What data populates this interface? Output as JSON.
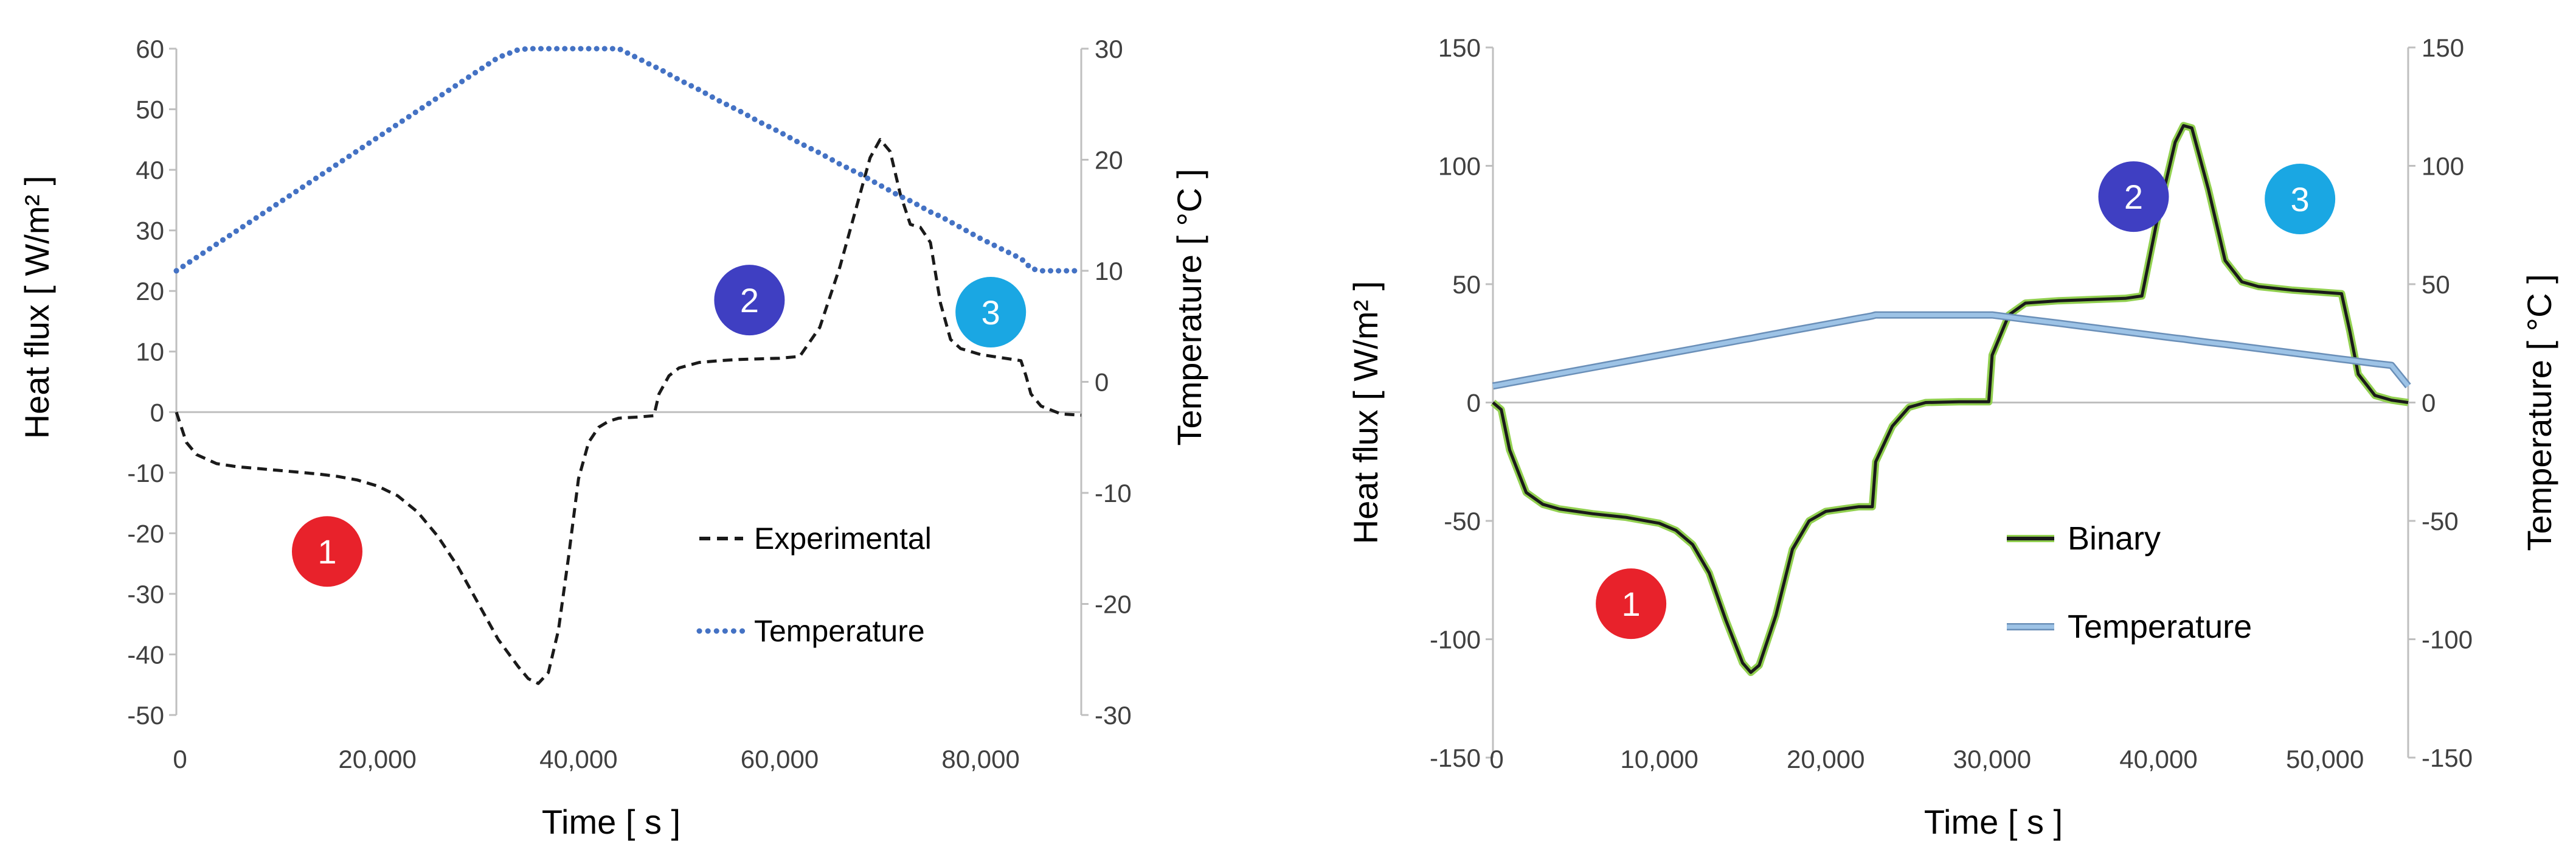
{
  "chart_data": [
    {
      "type": "line",
      "x": [
        0,
        1000,
        2000,
        4000,
        6000,
        8000,
        10000,
        12000,
        14000,
        16000,
        18000,
        20000,
        22000,
        24000,
        26000,
        28000,
        30000,
        32000,
        34000,
        35000,
        36000,
        37000,
        38000,
        39000,
        40000,
        41000,
        42000,
        43000,
        44000,
        46000,
        47500,
        48000,
        49000,
        50000,
        52000,
        54000,
        56000,
        58000,
        60000,
        62000,
        64000,
        66000,
        68000,
        69000,
        70000,
        71000,
        72000,
        73000,
        74000,
        75000,
        76000,
        77000,
        78000,
        80000,
        82000,
        84000,
        84500,
        85000,
        86000,
        88000,
        90000
      ],
      "series": [
        {
          "name": "Experimental",
          "axis": "left",
          "style": "dashed",
          "color": "#1a1a1a",
          "values": [
            0,
            -5,
            -7,
            -8.5,
            -9,
            -9.3,
            -9.6,
            -9.9,
            -10.2,
            -10.6,
            -11.2,
            -12.2,
            -13.8,
            -16.5,
            -20.5,
            -25.5,
            -31.5,
            -37.5,
            -42,
            -44,
            -44.8,
            -43,
            -36,
            -24,
            -11,
            -5,
            -2.5,
            -1.5,
            -1,
            -0.8,
            -0.6,
            3,
            6,
            7.3,
            8.2,
            8.5,
            8.7,
            8.8,
            8.9,
            9.2,
            14,
            24,
            36,
            42,
            45,
            43,
            36,
            31,
            30.5,
            28,
            18,
            12,
            10.5,
            9.5,
            9,
            8.5,
            6,
            3,
            1,
            -0.3,
            -0.5
          ]
        },
        {
          "name": "Temperature",
          "axis": "right",
          "style": "dotted",
          "color": "#4472c4",
          "values": [
            10,
            10.6,
            11.2,
            12.4,
            13.6,
            14.8,
            16,
            17.2,
            18.4,
            19.6,
            20.8,
            22,
            23.2,
            24.4,
            25.6,
            26.8,
            28,
            29.2,
            29.9,
            30,
            30,
            30,
            30,
            30,
            30,
            30,
            30,
            30,
            30,
            29.1,
            28.4,
            28.2,
            27.7,
            27.2,
            26.3,
            25.3,
            24.4,
            23.4,
            22.5,
            21.5,
            20.6,
            19.6,
            18.7,
            18.2,
            17.7,
            17.2,
            16.7,
            16.3,
            15.8,
            15.3,
            14.9,
            14.4,
            13.9,
            12.9,
            12,
            11.1,
            10.7,
            10.2,
            10,
            10,
            10
          ]
        }
      ],
      "xlabel": "Time [ s ]",
      "ylabel": "Heat flux [ W/m² ]",
      "y2label": "Temperature [ °C ]",
      "xlim": [
        0,
        90000
      ],
      "ylim": [
        -50,
        60
      ],
      "y2lim": [
        -30,
        30
      ],
      "xticks": [
        0,
        20000,
        40000,
        60000,
        80000
      ],
      "xtick_labels": [
        "0",
        "20,000",
        "40,000",
        "60,000",
        "80,000"
      ],
      "yticks": [
        -50,
        -40,
        -30,
        -20,
        -10,
        0,
        10,
        20,
        30,
        40,
        50,
        60
      ],
      "y2ticks": [
        -30,
        -20,
        -10,
        0,
        10,
        20,
        30
      ],
      "legend_position": "lower-right",
      "annotations": [
        {
          "label": "1",
          "x": 15000,
          "y": -23,
          "color": "#e8222b"
        },
        {
          "label": "2",
          "x": 57000,
          "y": 18.5,
          "color": "#3f3fc2"
        },
        {
          "label": "3",
          "x": 81000,
          "y": 16.5,
          "color": "#1aa7e3"
        }
      ]
    },
    {
      "type": "line",
      "x": [
        0,
        500,
        1000,
        2000,
        3000,
        4000,
        6000,
        8000,
        10000,
        11000,
        12000,
        13000,
        14000,
        15000,
        15500,
        16000,
        17000,
        18000,
        19000,
        20000,
        21000,
        22000,
        22500,
        22800,
        23000,
        24000,
        25000,
        26000,
        28000,
        29800,
        30000,
        31000,
        32000,
        34000,
        36000,
        38000,
        39000,
        40000,
        41000,
        41500,
        42000,
        43000,
        44000,
        45000,
        46000,
        48000,
        50000,
        51000,
        51500,
        52000,
        53000,
        54000,
        55000
      ],
      "series": [
        {
          "name": "Binary",
          "axis": "left",
          "style": "solid",
          "color": "#1a1a1a",
          "halo": "#92d050",
          "values": [
            0,
            -3,
            -20,
            -38,
            -43,
            -45,
            -47,
            -48.5,
            -51,
            -54,
            -60,
            -72,
            -92,
            -110,
            -114,
            -111,
            -90,
            -62,
            -50,
            -46,
            -45,
            -44,
            -44,
            -44,
            -25,
            -10,
            -2,
            0,
            0.3,
            0.3,
            20,
            37,
            42,
            43,
            43.5,
            44,
            45,
            80,
            110,
            117,
            116,
            90,
            60,
            51,
            49,
            47.5,
            46.5,
            46,
            30,
            12,
            3,
            1,
            0
          ]
        },
        {
          "name": "Temperature",
          "axis": "right",
          "style": "solid",
          "color": "#9dc3e6",
          "edge": "#6a8fb8",
          "values": [
            7,
            7.6,
            8.3,
            9.6,
            10.9,
            12.2,
            14.8,
            17.4,
            20,
            21.3,
            22.6,
            23.9,
            25.2,
            26.5,
            27.1,
            27.8,
            29.1,
            30.4,
            31.7,
            33,
            34.3,
            35.6,
            36.2,
            36.6,
            37,
            37,
            37,
            37,
            37,
            37,
            37,
            36.1,
            35.2,
            33.5,
            31.7,
            29.9,
            29,
            28.1,
            27.2,
            26.8,
            26.3,
            25.4,
            24.6,
            23.7,
            22.8,
            21,
            19.2,
            18.3,
            17.9,
            17.4,
            16.5,
            15.7,
            7
          ]
        }
      ],
      "xlabel": "Time [ s ]",
      "ylabel": "Heat flux [ W/m² ]",
      "y2label": "Temperature [ °C ]",
      "xlim": [
        0,
        55000
      ],
      "ylim": [
        -150,
        150
      ],
      "y2lim": [
        -150,
        150
      ],
      "xticks": [
        0,
        10000,
        20000,
        30000,
        40000,
        50000
      ],
      "xtick_labels": [
        "0",
        "10,000",
        "20,000",
        "30,000",
        "40,000",
        "50,000"
      ],
      "yticks": [
        -150,
        -100,
        -50,
        0,
        50,
        100,
        150
      ],
      "y2ticks": [
        -150,
        -100,
        -50,
        0,
        50,
        100,
        150
      ],
      "legend_position": "lower-right",
      "annotations": [
        {
          "label": "1",
          "x": 8300,
          "y": -85,
          "color": "#e8222b"
        },
        {
          "label": "2",
          "x": 38500,
          "y": 87,
          "color": "#3f3fc2"
        },
        {
          "label": "3",
          "x": 48500,
          "y": 86,
          "color": "#1aa7e3"
        }
      ]
    }
  ]
}
